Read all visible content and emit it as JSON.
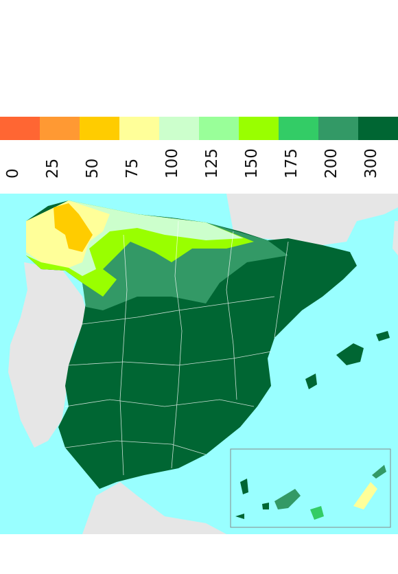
{
  "legend": {
    "colors": [
      "#ff6633",
      "#ff9933",
      "#ffcc00",
      "#ffff99",
      "#ccffcc",
      "#99ff99",
      "#99ff00",
      "#33cc66",
      "#339966",
      "#006633"
    ],
    "labels": [
      "0",
      "25",
      "50",
      "75",
      "100",
      "125",
      "150",
      "175",
      "200",
      "300"
    ]
  },
  "map": {
    "sea_color": "#99ffff",
    "land_color": "#e6e6e6",
    "dominant_color": "#006633",
    "inset": "canary-islands"
  }
}
